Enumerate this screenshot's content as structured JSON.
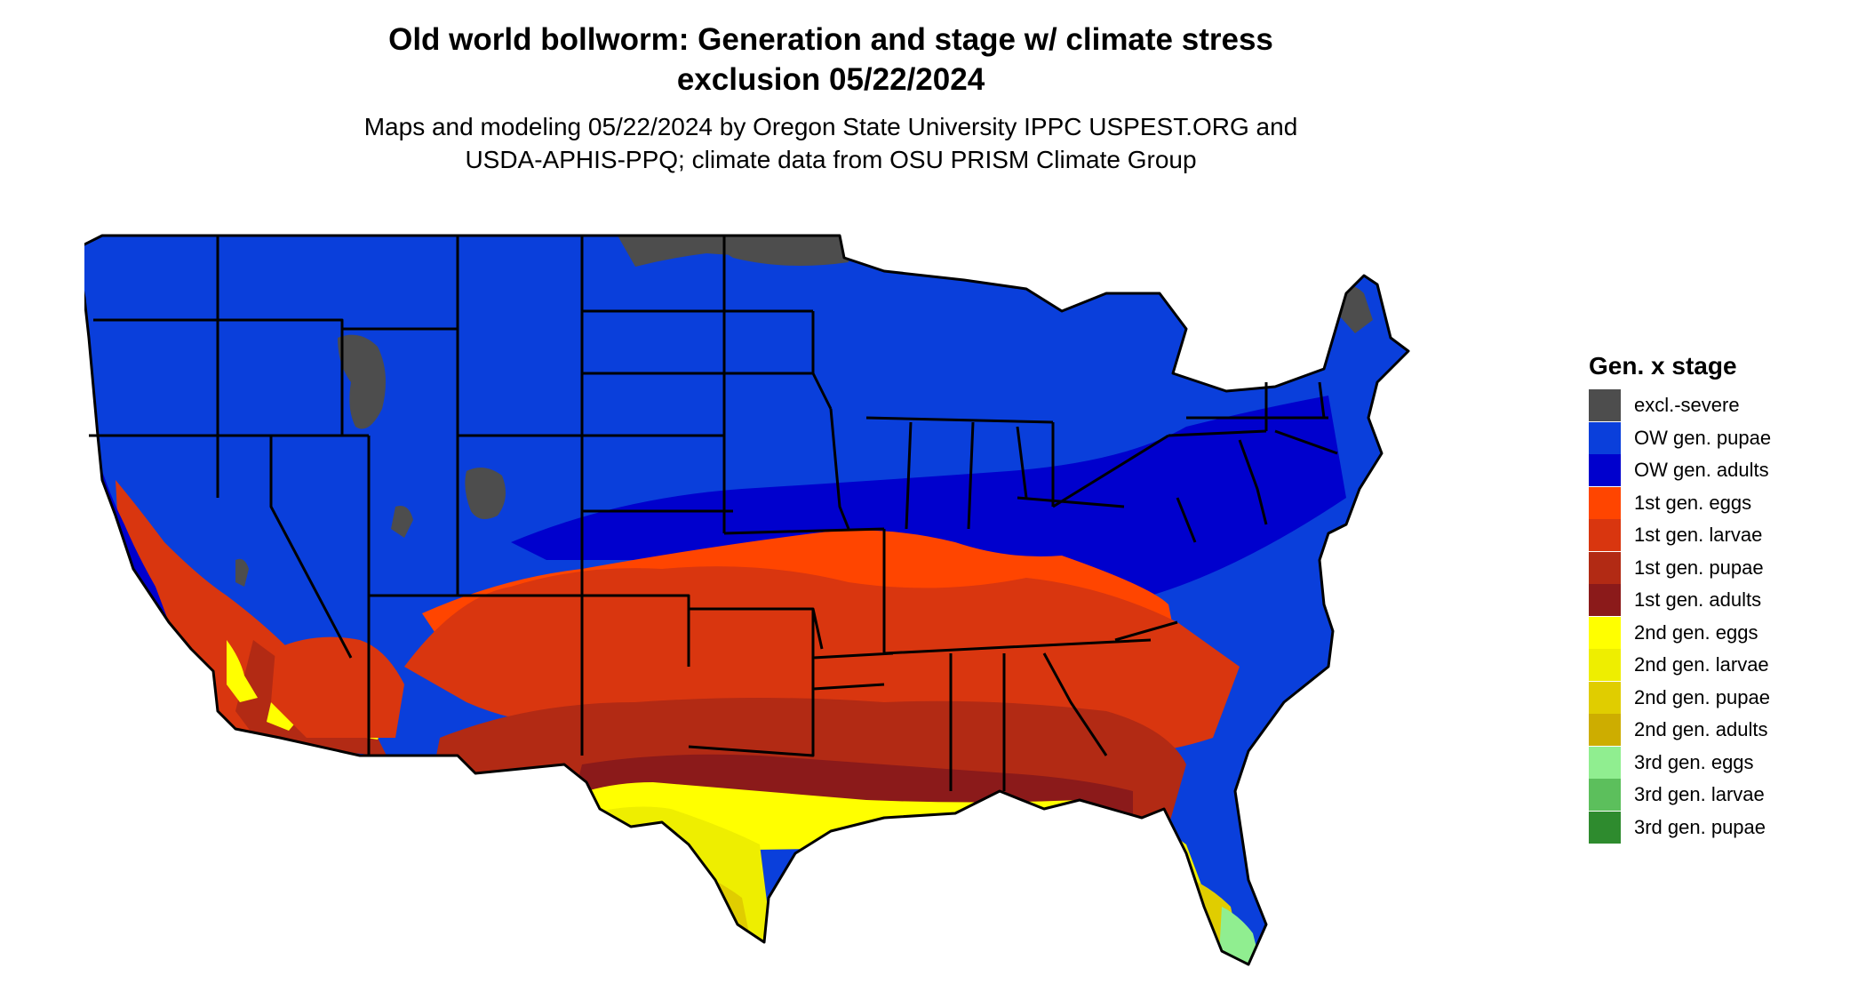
{
  "title": {
    "line1": "Old world bollworm: Generation and stage w/ climate stress",
    "line2": "exclusion 05/22/2024"
  },
  "subtitle": {
    "line1": "Maps and modeling 05/22/2024 by Oregon State University IPPC USPEST.ORG and",
    "line2": "USDA-APHIS-PPQ; climate data from OSU PRISM Climate Group"
  },
  "legend": {
    "title": "Gen. x stage",
    "items": [
      {
        "label": "excl.-severe",
        "color": "#4d4d4d"
      },
      {
        "label": "OW gen. pupae",
        "color": "#0a3fdb"
      },
      {
        "label": "OW gen. adults",
        "color": "#0000cd"
      },
      {
        "label": "1st gen. eggs",
        "color": "#ff4500"
      },
      {
        "label": "1st gen. larvae",
        "color": "#d9360f"
      },
      {
        "label": "1st gen. pupae",
        "color": "#b22a14"
      },
      {
        "label": "1st gen. adults",
        "color": "#8b1a1a"
      },
      {
        "label": "2nd gen. eggs",
        "color": "#ffff00"
      },
      {
        "label": "2nd gen. larvae",
        "color": "#eeee00"
      },
      {
        "label": "2nd gen. pupae",
        "color": "#e0cd00"
      },
      {
        "label": "2nd gen. adults",
        "color": "#cdad00"
      },
      {
        "label": "3rd gen. eggs",
        "color": "#90ee90"
      },
      {
        "label": "3rd gen. larvae",
        "color": "#5cbf5c"
      },
      {
        "label": "3rd gen. pupae",
        "color": "#2e8b2e"
      }
    ]
  }
}
